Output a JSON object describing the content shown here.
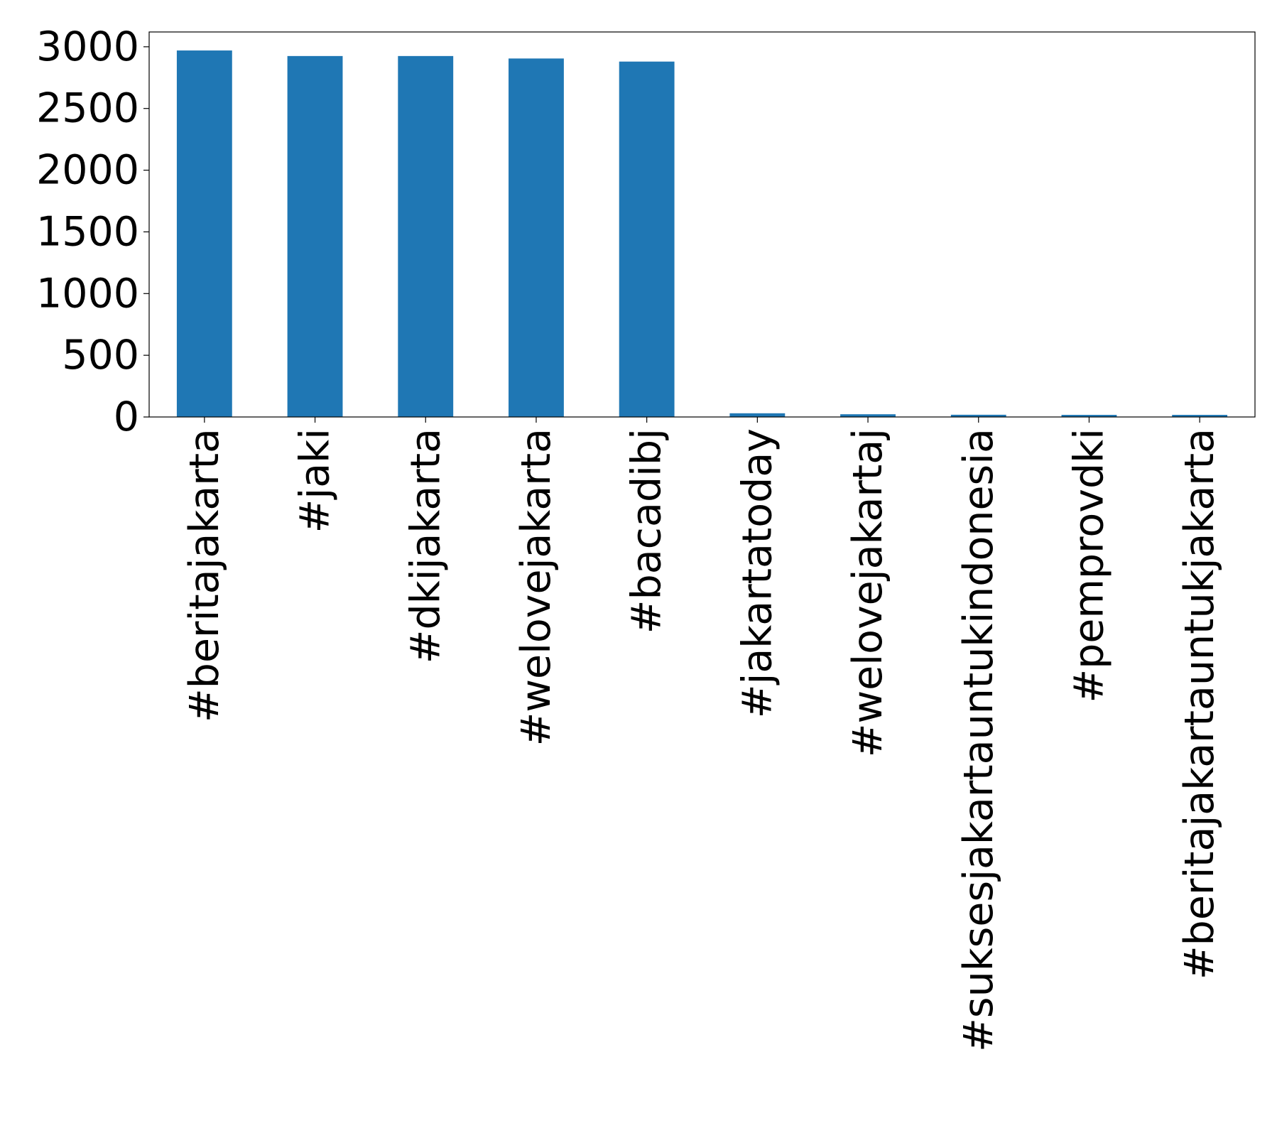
{
  "chart_data": {
    "type": "bar",
    "title": "",
    "xlabel": "",
    "ylabel": "",
    "categories": [
      "#beritajakarta",
      "#jaki",
      "#dkijakarta",
      "#welovejakarta",
      "#bacadibj",
      "#jakartatoday",
      "#welovejakartaj",
      "#suksesjakartauntukindonesia",
      "#pemprovdki",
      "#beritajakartauntukjakarta"
    ],
    "values": [
      2970,
      2925,
      2925,
      2905,
      2880,
      30,
      22,
      18,
      17,
      17
    ],
    "ylim": [
      0,
      3120
    ],
    "yticks": [
      0,
      500,
      1000,
      1500,
      2000,
      2500,
      3000
    ],
    "grid": false,
    "legend": "none",
    "bar_color": "#1f77b4"
  }
}
